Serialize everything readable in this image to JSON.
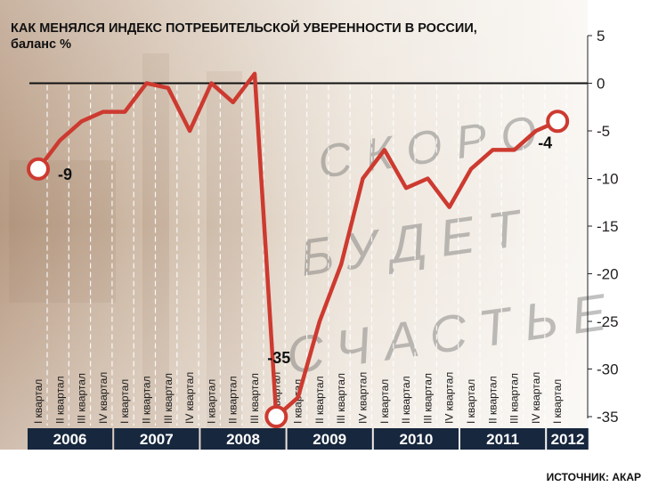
{
  "chart_data": {
    "type": "line",
    "title": "КАК МЕНЯЛСЯ ИНДЕКС ПОТРЕБИТЕЛЬСКОЙ УВЕРЕННОСТИ В РОССИИ,",
    "subtitle": "баланс %",
    "source": "ИСТОЧНИК: АКАР",
    "ylim": [
      -37,
      5
    ],
    "yticks": [
      5,
      0,
      -5,
      -10,
      -15,
      -20,
      -25,
      -30,
      -35
    ],
    "grid": false,
    "background_text": [
      "СКОРО",
      "БУДЕТ",
      "СЧАСТЬЕ"
    ],
    "quarters": [
      "I квартал",
      "II квартал",
      "III квартал",
      "IV квартал"
    ],
    "years": [
      "2006",
      "2007",
      "2008",
      "2009",
      "2010",
      "2011",
      "2012"
    ],
    "series": [
      {
        "values": [
          -9,
          -6,
          -4,
          -3,
          -3,
          0,
          -0.5,
          -5,
          0,
          -2,
          1,
          -35,
          -33,
          -25,
          -19,
          -10,
          -7,
          -11,
          -10,
          -13,
          -9,
          -7,
          -7,
          -5,
          -4
        ]
      }
    ],
    "annotations": [
      {
        "index": 0,
        "label": "-9"
      },
      {
        "index": 11,
        "label": "-35"
      },
      {
        "index": 24,
        "label": "-4"
      }
    ],
    "colors": {
      "line": "#cd3a30",
      "bar": "#17273e",
      "bar_text": "#ffffff",
      "zero_line": "#111111",
      "tick_text": "#231f20"
    }
  }
}
